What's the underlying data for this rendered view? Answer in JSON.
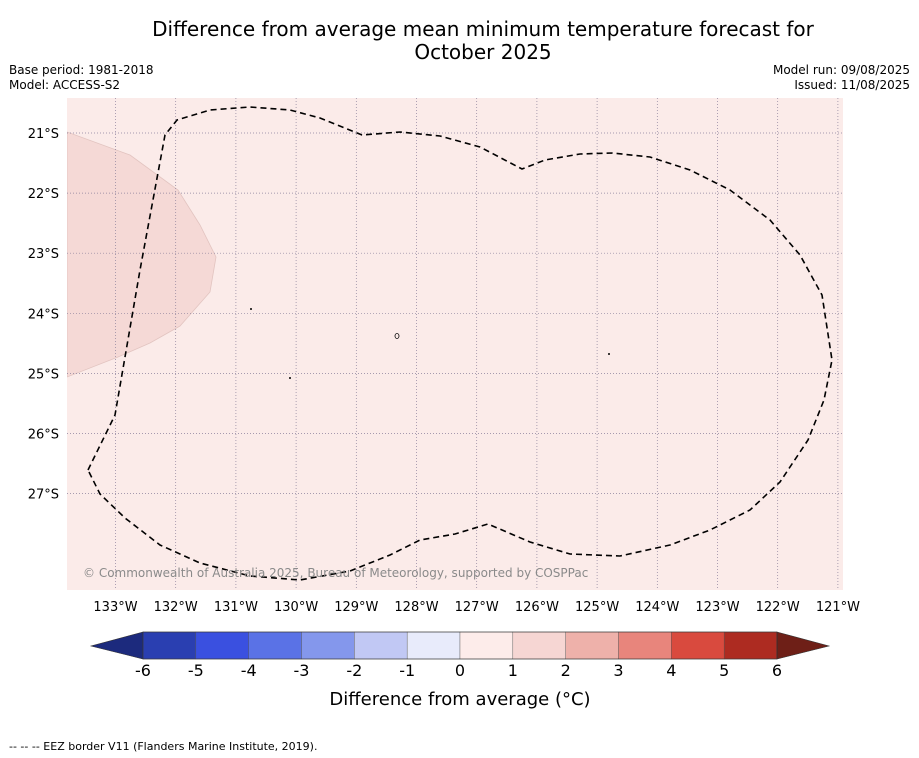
{
  "header": {
    "title_line1": "Difference from average mean minimum temperature forecast for",
    "title_line2": "October 2025",
    "base_period": "Base period: 1981-2018",
    "model": "Model: ACCESS-S2",
    "model_run": "Model run: 09/08/2025",
    "issued": "Issued: 11/08/2025"
  },
  "map": {
    "lon_labels": [
      "133°W",
      "132°W",
      "131°W",
      "130°W",
      "129°W",
      "128°W",
      "127°W",
      "126°W",
      "125°W",
      "124°W",
      "123°W",
      "122°W",
      "121°W"
    ],
    "lat_labels": [
      "21°S",
      "22°S",
      "23°S",
      "24°S",
      "25°S",
      "26°S",
      "27°S"
    ],
    "copyright": "© Commonwealth of Australia 2025, Bureau of Meteorology, supported by COSPPac",
    "background_color": "#fbebe9",
    "anomaly_patch_color": "#f5d9d6"
  },
  "colorbar": {
    "title": "Difference from average (°C)",
    "ticks": [
      "-6",
      "-5",
      "-4",
      "-3",
      "-2",
      "-1",
      "0",
      "1",
      "2",
      "3",
      "4",
      "5",
      "6"
    ],
    "colors": [
      "#2a3fb1",
      "#3a50e0",
      "#5a72e6",
      "#8497ec",
      "#c1c8f4",
      "#e8ebfb",
      "#fdecea",
      "#f6d6d3",
      "#eeb1aa",
      "#e8857c",
      "#d94a3e",
      "#ad2b21"
    ],
    "under_color": "#1c2a7d",
    "over_color": "#6e1f17"
  },
  "footer": {
    "legend_text": "--  --  -- EEZ border V11 (Flanders Marine Institute, 2019)."
  }
}
